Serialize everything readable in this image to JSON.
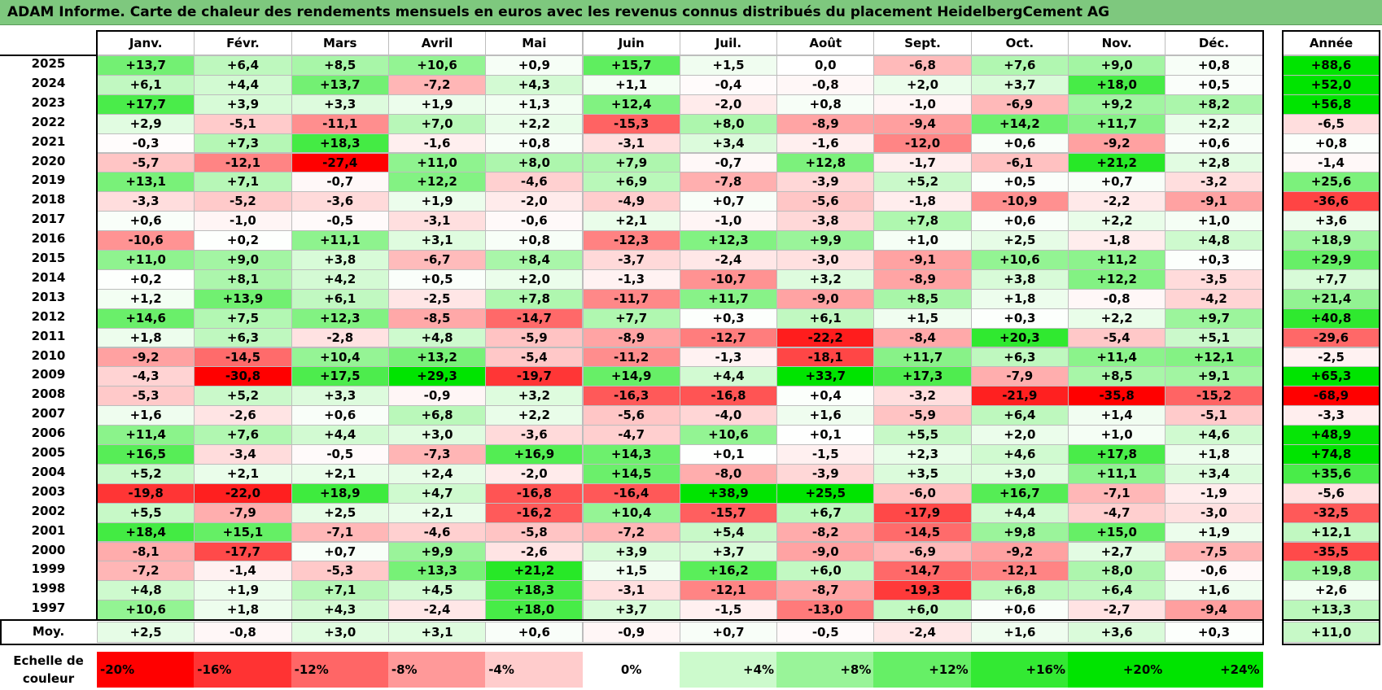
{
  "title": "ADAM Informe. Carte de chaleur des rendements mensuels en euros avec les revenus connus distribués du placement HeidelbergCement AG",
  "chart_data": {
    "type": "heatmap",
    "columns": [
      "Janv.",
      "Févr.",
      "Mars",
      "Avril",
      "Mai",
      "Juin",
      "Juil.",
      "Août",
      "Sept.",
      "Oct.",
      "Nov.",
      "Déc."
    ],
    "year_header": "Année",
    "avg_label": "Moy.",
    "scale_label": "Echelle de couleur",
    "rows": [
      {
        "year": "2025",
        "values": [
          "+13,7",
          "+6,4",
          "+8,5",
          "+10,6",
          "+0,9",
          "+15,7",
          "+1,5",
          "0,0",
          "-6,8",
          "+7,6",
          "+9,0",
          "+0,8"
        ],
        "annual": "+88,6"
      },
      {
        "year": "2024",
        "values": [
          "+6,1",
          "+4,4",
          "+13,7",
          "-7,2",
          "+4,3",
          "+1,1",
          "-0,4",
          "-0,8",
          "+2,0",
          "+3,7",
          "+18,0",
          "+0,5"
        ],
        "annual": "+52,0"
      },
      {
        "year": "2023",
        "values": [
          "+17,7",
          "+3,9",
          "+3,3",
          "+1,9",
          "+1,3",
          "+12,4",
          "-2,0",
          "+0,8",
          "-1,0",
          "-6,9",
          "+9,2",
          "+8,2"
        ],
        "annual": "+56,8"
      },
      {
        "year": "2022",
        "values": [
          "+2,9",
          "-5,1",
          "-11,1",
          "+7,0",
          "+2,2",
          "-15,3",
          "+8,0",
          "-8,9",
          "-9,4",
          "+14,2",
          "+11,7",
          "+2,2"
        ],
        "annual": "-6,5"
      },
      {
        "year": "2021",
        "values": [
          "-0,3",
          "+7,3",
          "+18,3",
          "-1,6",
          "+0,8",
          "-3,1",
          "+3,4",
          "-1,6",
          "-12,0",
          "+0,6",
          "-9,2",
          "+0,6"
        ],
        "annual": "+0,8"
      },
      {
        "year": "2020",
        "values": [
          "-5,7",
          "-12,1",
          "-27,4",
          "+11,0",
          "+8,0",
          "+7,9",
          "-0,7",
          "+12,8",
          "-1,7",
          "-6,1",
          "+21,2",
          "+2,8"
        ],
        "annual": "-1,4"
      },
      {
        "year": "2019",
        "values": [
          "+13,1",
          "+7,1",
          "-0,7",
          "+12,2",
          "-4,6",
          "+6,9",
          "-7,8",
          "-3,9",
          "+5,2",
          "+0,5",
          "+0,7",
          "-3,2"
        ],
        "annual": "+25,6"
      },
      {
        "year": "2018",
        "values": [
          "-3,3",
          "-5,2",
          "-3,6",
          "+1,9",
          "-2,0",
          "-4,9",
          "+0,7",
          "-5,6",
          "-1,8",
          "-10,9",
          "-2,2",
          "-9,1"
        ],
        "annual": "-36,6"
      },
      {
        "year": "2017",
        "values": [
          "+0,6",
          "-1,0",
          "-0,5",
          "-3,1",
          "-0,6",
          "+2,1",
          "-1,0",
          "-3,8",
          "+7,8",
          "+0,6",
          "+2,2",
          "+1,0"
        ],
        "annual": "+3,6"
      },
      {
        "year": "2016",
        "values": [
          "-10,6",
          "+0,2",
          "+11,1",
          "+3,1",
          "+0,8",
          "-12,3",
          "+12,3",
          "+9,9",
          "+1,0",
          "+2,5",
          "-1,8",
          "+4,8"
        ],
        "annual": "+18,9"
      },
      {
        "year": "2015",
        "values": [
          "+11,0",
          "+9,0",
          "+3,8",
          "-6,7",
          "+8,4",
          "-3,7",
          "-2,4",
          "-3,0",
          "-9,1",
          "+10,6",
          "+11,2",
          "+0,3"
        ],
        "annual": "+29,9"
      },
      {
        "year": "2014",
        "values": [
          "+0,2",
          "+8,1",
          "+4,2",
          "+0,5",
          "+2,0",
          "-1,3",
          "-10,7",
          "+3,2",
          "-8,9",
          "+3,8",
          "+12,2",
          "-3,5"
        ],
        "annual": "+7,7"
      },
      {
        "year": "2013",
        "values": [
          "+1,2",
          "+13,9",
          "+6,1",
          "-2,5",
          "+7,8",
          "-11,7",
          "+11,7",
          "-9,0",
          "+8,5",
          "+1,8",
          "-0,8",
          "-4,2"
        ],
        "annual": "+21,4"
      },
      {
        "year": "2012",
        "values": [
          "+14,6",
          "+7,5",
          "+12,3",
          "-8,5",
          "-14,7",
          "+7,7",
          "+0,3",
          "+6,1",
          "+1,5",
          "+0,3",
          "+2,2",
          "+9,7"
        ],
        "annual": "+40,8"
      },
      {
        "year": "2011",
        "values": [
          "+1,8",
          "+6,3",
          "-2,8",
          "+4,8",
          "-5,9",
          "-8,9",
          "-12,7",
          "-22,2",
          "-8,4",
          "+20,3",
          "-5,4",
          "+5,1"
        ],
        "annual": "-29,6"
      },
      {
        "year": "2010",
        "values": [
          "-9,2",
          "-14,5",
          "+10,4",
          "+13,2",
          "-5,4",
          "-11,2",
          "-1,3",
          "-18,1",
          "+11,7",
          "+6,3",
          "+11,4",
          "+12,1"
        ],
        "annual": "-2,5"
      },
      {
        "year": "2009",
        "values": [
          "-4,3",
          "-30,8",
          "+17,5",
          "+29,3",
          "-19,7",
          "+14,9",
          "+4,4",
          "+33,7",
          "+17,3",
          "-7,9",
          "+8,5",
          "+9,1"
        ],
        "annual": "+65,3"
      },
      {
        "year": "2008",
        "values": [
          "-5,3",
          "+5,2",
          "+3,3",
          "-0,9",
          "+3,2",
          "-16,3",
          "-16,8",
          "+0,4",
          "-3,2",
          "-21,9",
          "-35,8",
          "-15,2"
        ],
        "annual": "-68,9"
      },
      {
        "year": "2007",
        "values": [
          "+1,6",
          "-2,6",
          "+0,6",
          "+6,8",
          "+2,2",
          "-5,6",
          "-4,0",
          "+1,6",
          "-5,9",
          "+6,4",
          "+1,4",
          "-5,1"
        ],
        "annual": "-3,3"
      },
      {
        "year": "2006",
        "values": [
          "+11,4",
          "+7,6",
          "+4,4",
          "+3,0",
          "-3,6",
          "-4,7",
          "+10,6",
          "+0,1",
          "+5,5",
          "+2,0",
          "+1,0",
          "+4,6"
        ],
        "annual": "+48,9"
      },
      {
        "year": "2005",
        "values": [
          "+16,5",
          "-3,4",
          "-0,5",
          "-7,3",
          "+16,9",
          "+14,3",
          "+0,1",
          "-1,5",
          "+2,3",
          "+4,6",
          "+17,8",
          "+1,8"
        ],
        "annual": "+74,8"
      },
      {
        "year": "2004",
        "values": [
          "+5,2",
          "+2,1",
          "+2,1",
          "+2,4",
          "-2,0",
          "+14,5",
          "-8,0",
          "-3,9",
          "+3,5",
          "+3,0",
          "+11,1",
          "+3,4"
        ],
        "annual": "+35,6"
      },
      {
        "year": "2003",
        "values": [
          "-19,8",
          "-22,0",
          "+18,9",
          "+4,7",
          "-16,8",
          "-16,4",
          "+38,9",
          "+25,5",
          "-6,0",
          "+16,7",
          "-7,1",
          "-1,9"
        ],
        "annual": "-5,6"
      },
      {
        "year": "2002",
        "values": [
          "+5,5",
          "-7,9",
          "+2,5",
          "+2,1",
          "-16,2",
          "+10,4",
          "-15,7",
          "+6,7",
          "-17,9",
          "+4,4",
          "-4,7",
          "-3,0"
        ],
        "annual": "-32,5"
      },
      {
        "year": "2001",
        "values": [
          "+18,4",
          "+15,1",
          "-7,1",
          "-4,6",
          "-5,8",
          "-7,2",
          "+5,4",
          "-8,2",
          "-14,5",
          "+9,8",
          "+15,0",
          "+1,9"
        ],
        "annual": "+12,1"
      },
      {
        "year": "2000",
        "values": [
          "-8,1",
          "-17,7",
          "+0,7",
          "+9,9",
          "-2,6",
          "+3,9",
          "+3,7",
          "-9,0",
          "-6,9",
          "-9,2",
          "+2,7",
          "-7,5"
        ],
        "annual": "-35,5"
      },
      {
        "year": "1999",
        "values": [
          "-7,2",
          "-1,4",
          "-5,3",
          "+13,3",
          "+21,2",
          "+1,5",
          "+16,2",
          "+6,0",
          "-14,7",
          "-12,1",
          "+8,0",
          "-0,6"
        ],
        "annual": "+19,8"
      },
      {
        "year": "1998",
        "values": [
          "+4,8",
          "+1,9",
          "+7,1",
          "+4,5",
          "+18,3",
          "-3,1",
          "-12,1",
          "-8,7",
          "-19,3",
          "+6,8",
          "+6,4",
          "+1,6"
        ],
        "annual": "+2,6"
      },
      {
        "year": "1997",
        "values": [
          "+10,6",
          "+1,8",
          "+4,3",
          "-2,4",
          "+18,0",
          "+3,7",
          "-1,5",
          "-13,0",
          "+6,0",
          "+0,6",
          "-2,7",
          "-9,4"
        ],
        "annual": "+13,3"
      }
    ],
    "averages": [
      "+2,5",
      "-0,8",
      "+3,0",
      "+3,1",
      "+0,6",
      "-0,9",
      "+0,7",
      "-0,5",
      "-2,4",
      "+1,6",
      "+3,6",
      "+0,3"
    ],
    "avg_annual": "+11,0",
    "scale": [
      "-20%",
      "-16%",
      "-12%",
      "-8%",
      "-4%",
      "0%",
      "+4%",
      "+8%",
      "+12%",
      "+16%",
      "+20%",
      "+24%"
    ],
    "colors": {
      "positive": "#00e400",
      "negative": "#ff0000",
      "neutral": "#ffffff",
      "title_bg": "#7ec87e"
    }
  }
}
